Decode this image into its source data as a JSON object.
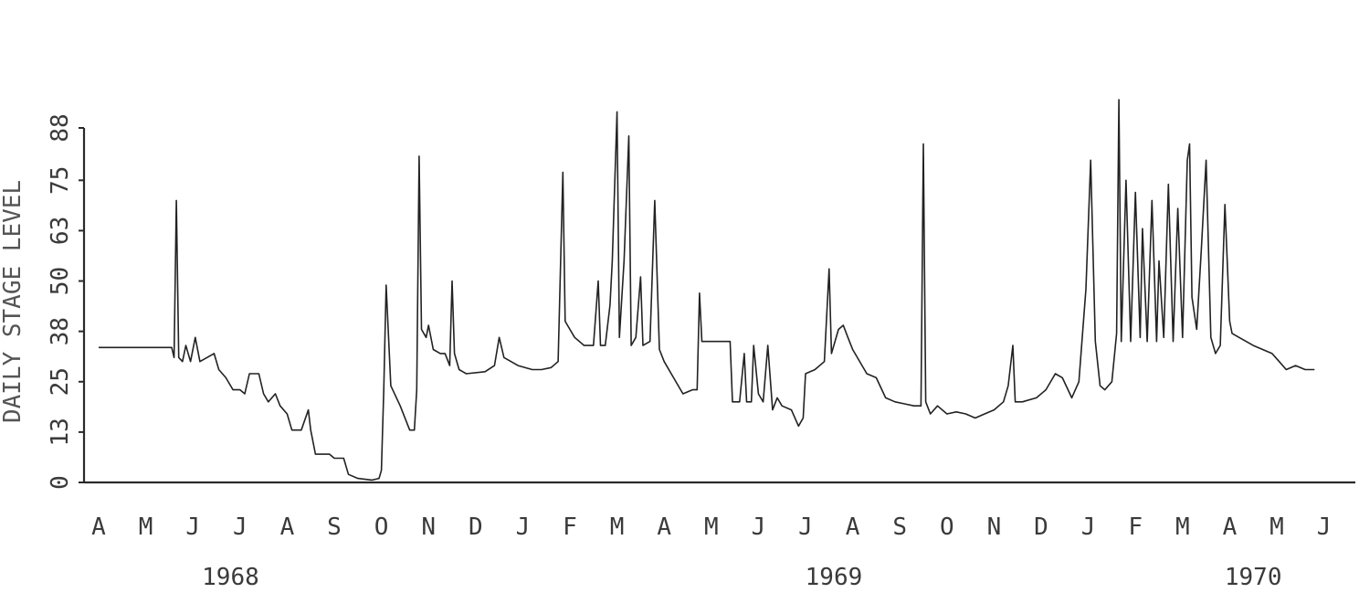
{
  "chart_data": {
    "type": "line",
    "title": "",
    "ylabel": "DAILY STAGE LEVEL",
    "xlabel": "",
    "ylim": [
      0,
      88
    ],
    "y_ticks": [
      "0",
      "13",
      "25",
      "38",
      "50",
      "63",
      "75",
      "88"
    ],
    "y_tick_values": [
      0,
      12.5,
      25,
      37.5,
      50,
      62.5,
      75,
      88
    ],
    "month_labels": [
      "A",
      "M",
      "J",
      "J",
      "A",
      "S",
      "O",
      "N",
      "D",
      "J",
      "F",
      "M",
      "A",
      "M",
      "J",
      "J",
      "A",
      "S",
      "O",
      "N",
      "D",
      "J",
      "F",
      "M",
      "A",
      "M",
      "J"
    ],
    "year_labels": [
      {
        "label": "1968",
        "month_index": 2.8
      },
      {
        "label": "1969",
        "month_index": 15.6
      },
      {
        "label": "1970",
        "month_index": 24.5
      }
    ],
    "x_domain_months": [
      0,
      27.3
    ],
    "series": [
      {
        "name": "daily stage level",
        "points": [
          [
            0.0,
            33.5
          ],
          [
            1.0,
            33.5
          ],
          [
            1.55,
            33.5
          ],
          [
            1.6,
            31
          ],
          [
            1.65,
            70
          ],
          [
            1.7,
            31
          ],
          [
            1.78,
            30
          ],
          [
            1.85,
            34
          ],
          [
            1.95,
            30
          ],
          [
            2.05,
            36
          ],
          [
            2.15,
            30
          ],
          [
            2.3,
            31
          ],
          [
            2.45,
            32
          ],
          [
            2.55,
            28
          ],
          [
            2.7,
            26
          ],
          [
            2.85,
            23
          ],
          [
            3.0,
            23
          ],
          [
            3.1,
            22
          ],
          [
            3.2,
            27
          ],
          [
            3.4,
            27
          ],
          [
            3.5,
            22
          ],
          [
            3.6,
            20
          ],
          [
            3.75,
            22
          ],
          [
            3.85,
            19
          ],
          [
            4.0,
            17
          ],
          [
            4.1,
            13
          ],
          [
            4.3,
            13
          ],
          [
            4.45,
            18
          ],
          [
            4.5,
            13
          ],
          [
            4.6,
            7
          ],
          [
            4.9,
            7
          ],
          [
            5.0,
            6
          ],
          [
            5.2,
            6
          ],
          [
            5.3,
            2
          ],
          [
            5.5,
            1
          ],
          [
            5.8,
            0.6
          ],
          [
            5.95,
            1
          ],
          [
            6.0,
            3
          ],
          [
            6.05,
            23
          ],
          [
            6.1,
            49
          ],
          [
            6.2,
            24
          ],
          [
            6.4,
            19
          ],
          [
            6.6,
            13
          ],
          [
            6.7,
            13
          ],
          [
            6.75,
            23
          ],
          [
            6.8,
            81
          ],
          [
            6.85,
            38
          ],
          [
            6.95,
            36
          ],
          [
            7.0,
            39
          ],
          [
            7.1,
            33
          ],
          [
            7.25,
            32
          ],
          [
            7.35,
            32
          ],
          [
            7.45,
            29
          ],
          [
            7.5,
            50
          ],
          [
            7.55,
            32
          ],
          [
            7.65,
            28
          ],
          [
            7.8,
            27
          ],
          [
            8.2,
            27.5
          ],
          [
            8.4,
            29
          ],
          [
            8.5,
            36
          ],
          [
            8.6,
            31
          ],
          [
            8.75,
            30
          ],
          [
            8.9,
            29
          ],
          [
            9.2,
            28
          ],
          [
            9.4,
            28
          ],
          [
            9.6,
            28.5
          ],
          [
            9.75,
            30
          ],
          [
            9.85,
            77
          ],
          [
            9.9,
            40
          ],
          [
            10.0,
            38
          ],
          [
            10.1,
            36
          ],
          [
            10.3,
            34
          ],
          [
            10.5,
            34
          ],
          [
            10.6,
            50
          ],
          [
            10.65,
            34
          ],
          [
            10.75,
            34
          ],
          [
            10.85,
            44
          ],
          [
            10.9,
            55
          ],
          [
            11.0,
            92
          ],
          [
            11.05,
            36
          ],
          [
            11.15,
            55
          ],
          [
            11.25,
            86
          ],
          [
            11.3,
            34
          ],
          [
            11.4,
            36
          ],
          [
            11.5,
            51
          ],
          [
            11.55,
            34
          ],
          [
            11.7,
            35
          ],
          [
            11.8,
            70
          ],
          [
            11.9,
            33
          ],
          [
            12.0,
            30
          ],
          [
            12.2,
            26
          ],
          [
            12.4,
            22
          ],
          [
            12.6,
            23
          ],
          [
            12.7,
            23
          ],
          [
            12.75,
            47
          ],
          [
            12.8,
            35
          ],
          [
            13.0,
            35
          ],
          [
            13.4,
            35
          ],
          [
            13.45,
            20
          ],
          [
            13.6,
            20
          ],
          [
            13.7,
            32
          ],
          [
            13.75,
            20
          ],
          [
            13.85,
            20
          ],
          [
            13.9,
            34
          ],
          [
            14.0,
            22
          ],
          [
            14.1,
            20
          ],
          [
            14.2,
            34
          ],
          [
            14.3,
            18
          ],
          [
            14.4,
            21
          ],
          [
            14.5,
            19
          ],
          [
            14.7,
            18
          ],
          [
            14.85,
            14
          ],
          [
            14.95,
            16
          ],
          [
            15.0,
            27
          ],
          [
            15.2,
            28
          ],
          [
            15.4,
            30
          ],
          [
            15.5,
            53
          ],
          [
            15.55,
            32
          ],
          [
            15.7,
            38
          ],
          [
            15.8,
            39
          ],
          [
            15.9,
            36
          ],
          [
            16.0,
            33
          ],
          [
            16.3,
            27
          ],
          [
            16.5,
            26
          ],
          [
            16.7,
            21
          ],
          [
            16.9,
            20
          ],
          [
            17.1,
            19.5
          ],
          [
            17.3,
            19
          ],
          [
            17.45,
            19
          ],
          [
            17.5,
            84
          ],
          [
            17.55,
            20
          ],
          [
            17.65,
            17
          ],
          [
            17.8,
            19
          ],
          [
            18.0,
            17
          ],
          [
            18.2,
            17.5
          ],
          [
            18.4,
            17
          ],
          [
            18.6,
            16
          ],
          [
            18.8,
            17
          ],
          [
            19.0,
            18
          ],
          [
            19.2,
            20
          ],
          [
            19.3,
            24
          ],
          [
            19.4,
            34
          ],
          [
            19.45,
            20
          ],
          [
            19.6,
            20
          ],
          [
            19.9,
            21
          ],
          [
            20.1,
            23
          ],
          [
            20.3,
            27
          ],
          [
            20.45,
            26
          ],
          [
            20.65,
            21
          ],
          [
            20.8,
            25
          ],
          [
            20.95,
            48
          ],
          [
            21.05,
            80
          ],
          [
            21.15,
            35
          ],
          [
            21.25,
            24
          ],
          [
            21.35,
            23
          ],
          [
            21.5,
            25
          ],
          [
            21.6,
            37
          ],
          [
            21.65,
            95
          ],
          [
            21.7,
            35
          ],
          [
            21.8,
            75
          ],
          [
            21.9,
            35
          ],
          [
            22.0,
            72
          ],
          [
            22.1,
            36
          ],
          [
            22.15,
            63
          ],
          [
            22.25,
            35
          ],
          [
            22.35,
            70
          ],
          [
            22.45,
            35
          ],
          [
            22.5,
            55
          ],
          [
            22.6,
            36
          ],
          [
            22.7,
            74
          ],
          [
            22.8,
            35
          ],
          [
            22.9,
            68
          ],
          [
            23.0,
            36
          ],
          [
            23.1,
            80
          ],
          [
            23.15,
            84
          ],
          [
            23.2,
            46
          ],
          [
            23.3,
            38
          ],
          [
            23.4,
            58
          ],
          [
            23.5,
            80
          ],
          [
            23.6,
            36
          ],
          [
            23.7,
            32
          ],
          [
            23.8,
            34
          ],
          [
            23.9,
            69
          ],
          [
            24.0,
            40
          ],
          [
            24.05,
            37
          ],
          [
            24.2,
            36
          ],
          [
            24.5,
            34
          ],
          [
            24.7,
            33
          ],
          [
            24.9,
            32
          ],
          [
            25.05,
            30
          ],
          [
            25.2,
            28
          ],
          [
            25.4,
            29
          ],
          [
            25.6,
            28
          ],
          [
            25.8,
            28
          ]
        ]
      }
    ]
  }
}
